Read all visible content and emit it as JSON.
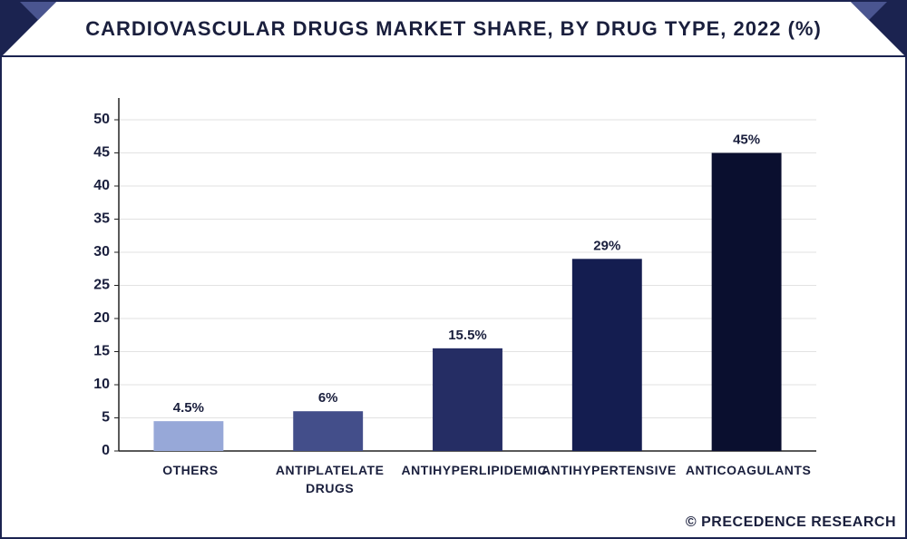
{
  "chart_data": {
    "type": "bar",
    "title": "CARDIOVASCULAR DRUGS MARKET SHARE, BY DRUG TYPE, 2022 (%)",
    "categories": [
      "OTHERS",
      "ANTIPLATELATE DRUGS",
      "ANTIHYPERLIPIDEMIC",
      "ANTIHYPERTENSIVE",
      "ANTICOAGULANTS"
    ],
    "values": [
      4.5,
      6,
      15.5,
      29,
      45
    ],
    "value_labels": [
      "4.5%",
      "6%",
      "15.5%",
      "29%",
      "45%"
    ],
    "colors": [
      "#97a8d8",
      "#434e8a",
      "#252d64",
      "#141d50",
      "#0a0f2f"
    ],
    "ylim": [
      0,
      50
    ],
    "yticks": [
      0,
      5,
      10,
      15,
      20,
      25,
      30,
      35,
      40,
      45,
      50
    ],
    "grid": true,
    "watermark": "© PRECEDENCE RESEARCH"
  }
}
